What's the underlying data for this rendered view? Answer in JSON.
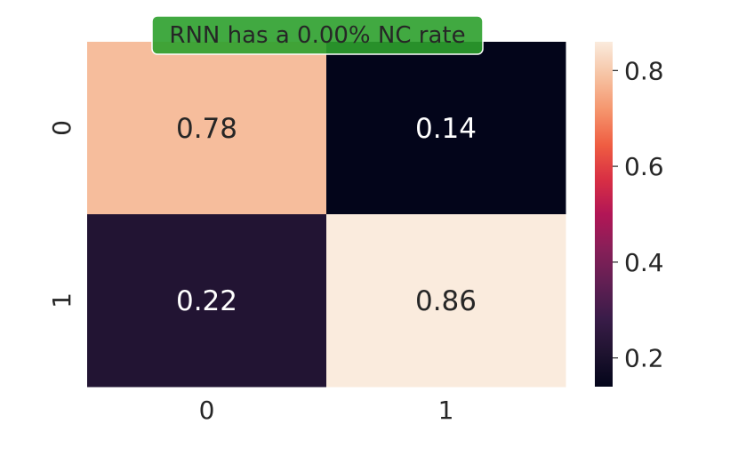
{
  "chart_data": {
    "type": "heatmap",
    "title": "RNN has a 0.00% NC rate",
    "title_box_color": "#2ca02c",
    "x_categories": [
      "0",
      "1"
    ],
    "y_categories": [
      "0",
      "1"
    ],
    "values": [
      [
        0.78,
        0.14
      ],
      [
        0.22,
        0.86
      ]
    ],
    "value_labels": [
      [
        "0.78",
        "0.14"
      ],
      [
        "0.22",
        "0.86"
      ]
    ],
    "colormap": "rocket",
    "color_range": [
      0.14,
      0.86
    ],
    "colorbar_ticks": [
      0.2,
      0.4,
      0.6,
      0.8
    ],
    "colorbar_tick_labels": [
      "0.2",
      "0.4",
      "0.6",
      "0.8"
    ],
    "colorbar_position": "right",
    "grid": false
  }
}
